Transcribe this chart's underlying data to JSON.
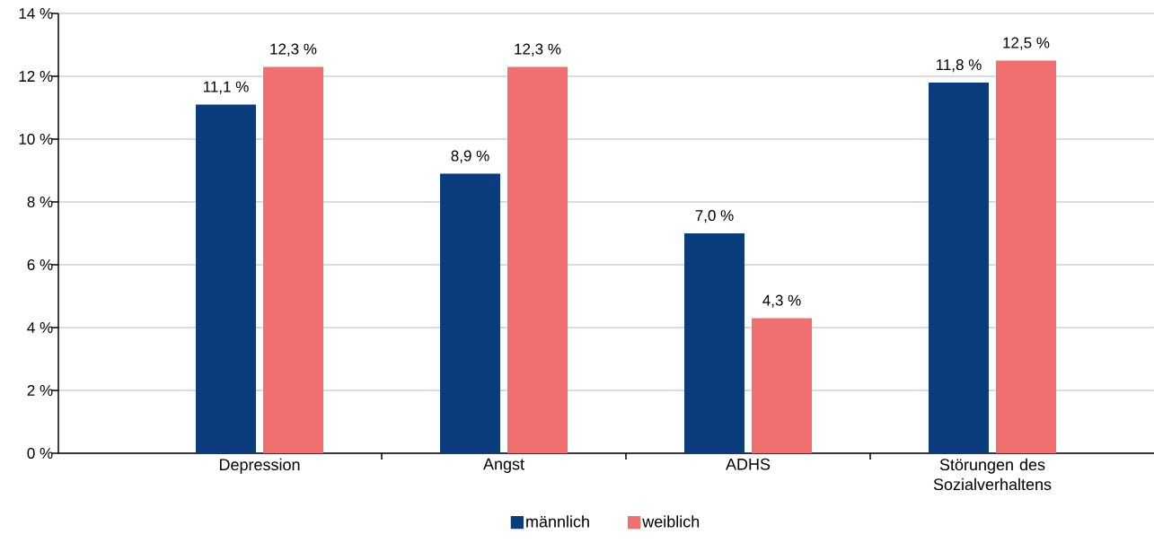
{
  "chart_data": {
    "type": "bar",
    "categories": [
      "Depression",
      "Angst",
      "ADHS",
      "Störungen des Sozialverhaltens"
    ],
    "series": [
      {
        "name": "männlich",
        "color": "#0b3d7e",
        "values": [
          11.1,
          8.9,
          7.0,
          11.8
        ],
        "value_labels": [
          "11,1 %",
          "8,9 %",
          "7,0 %",
          "11,8 %"
        ]
      },
      {
        "name": "weiblich",
        "color": "#f07070",
        "values": [
          12.3,
          12.3,
          4.3,
          12.5
        ],
        "value_labels": [
          "12,3 %",
          "12,3 %",
          "4,3 %",
          "12,5 %"
        ]
      }
    ],
    "ylim": [
      0,
      14
    ],
    "yticks": [
      {
        "value": 0,
        "label": "0 %"
      },
      {
        "value": 2,
        "label": "2 %"
      },
      {
        "value": 4,
        "label": "4 %"
      },
      {
        "value": 6,
        "label": "6 %"
      },
      {
        "value": 8,
        "label": "8 %"
      },
      {
        "value": 10,
        "label": "10 %"
      },
      {
        "value": 12,
        "label": "12 %"
      },
      {
        "value": 14,
        "label": "14 %"
      }
    ],
    "grid": "y",
    "legend": "bottom"
  }
}
